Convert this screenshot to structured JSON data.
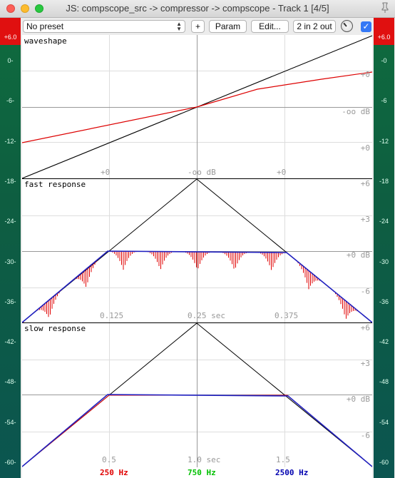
{
  "window": {
    "title": "JS: compscope_src -> compressor -> compscope - Track 1 [4/5]"
  },
  "toolbar": {
    "preset": "No preset",
    "add_label": "+",
    "param_label": "Param",
    "edit_label": "Edit...",
    "io_label": "2 in 2 out",
    "enabled": true
  },
  "meter_left": {
    "peak": "+6.0",
    "scale": [
      "0-",
      "-6-",
      "-12-",
      "-18-",
      "-24-",
      "-30-",
      "-36-",
      "-42-",
      "-48-",
      "-54-",
      "-60-"
    ]
  },
  "meter_right": {
    "peak": "+6.0",
    "scale": [
      "-0",
      "-6",
      "-12",
      "-18",
      "-24",
      "-30",
      "-36",
      "-42",
      "-48",
      "-54",
      "-60"
    ]
  },
  "panels": {
    "waveshape": {
      "title": "waveshape",
      "x_labels": [
        "+0",
        "-oo dB",
        "+0"
      ],
      "y_labels": [
        "+0",
        "-oo dB",
        "+0"
      ]
    },
    "fast": {
      "title": "fast response",
      "x_labels": [
        "0.125",
        "0.25 sec",
        "0.375"
      ],
      "y_labels": [
        "+6",
        "+3",
        "+0 dB",
        "-6"
      ]
    },
    "slow": {
      "title": "slow response",
      "x_labels": [
        "0.5",
        "1.0 sec",
        "1.5"
      ],
      "y_labels": [
        "+6",
        "+3",
        "+0 dB",
        "-6"
      ]
    }
  },
  "footer": {
    "bands": [
      {
        "label": "250 Hz",
        "color": "#e00000"
      },
      {
        "label": "750 Hz",
        "color": "#00c000"
      },
      {
        "label": "2500 Hz",
        "color": "#0000b0"
      }
    ]
  }
}
